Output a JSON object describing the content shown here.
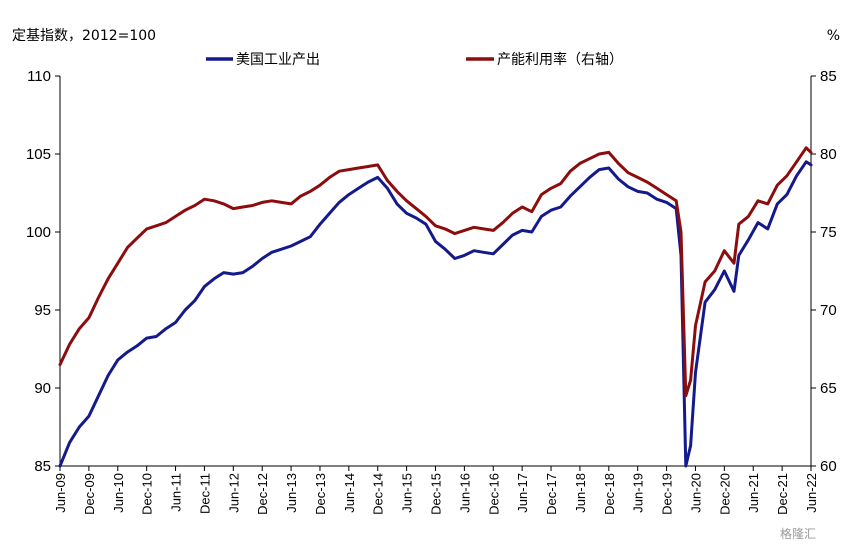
{
  "chart_data": {
    "type": "line",
    "title": "",
    "left_axis_note": "定基指数，2012=100",
    "right_axis_note": "%",
    "ylim_left": [
      85,
      110
    ],
    "ylim_right": [
      60,
      85
    ],
    "yticks_left": [
      "85",
      "90",
      "95",
      "100",
      "105",
      "110"
    ],
    "yticks_right": [
      "60",
      "65",
      "70",
      "75",
      "80",
      "85"
    ],
    "x_range": [
      "2009-06",
      "2022-06"
    ],
    "xticks": [
      "Jun-09",
      "Dec-09",
      "Jun-10",
      "Dec-10",
      "Jun-11",
      "Dec-11",
      "Jun-12",
      "Dec-12",
      "Jun-13",
      "Dec-13",
      "Jun-14",
      "Dec-14",
      "Jun-15",
      "Dec-15",
      "Jun-16",
      "Dec-16",
      "Jun-17",
      "Dec-17",
      "Jun-18",
      "Dec-18",
      "Jun-19",
      "Dec-19",
      "Jun-20",
      "Dec-20",
      "Jun-21",
      "Dec-21",
      "Jun-22"
    ],
    "grid": false,
    "legend_position": "top",
    "series": [
      {
        "name": "美国工业产出",
        "axis": "left",
        "color": "#141a8c",
        "points": [
          [
            "2009-06",
            85.0
          ],
          [
            "2009-08",
            86.5
          ],
          [
            "2009-10",
            87.5
          ],
          [
            "2009-12",
            88.2
          ],
          [
            "2010-02",
            89.5
          ],
          [
            "2010-04",
            90.8
          ],
          [
            "2010-06",
            91.8
          ],
          [
            "2010-08",
            92.3
          ],
          [
            "2010-10",
            92.7
          ],
          [
            "2010-12",
            93.2
          ],
          [
            "2011-02",
            93.3
          ],
          [
            "2011-04",
            93.8
          ],
          [
            "2011-06",
            94.2
          ],
          [
            "2011-08",
            95.0
          ],
          [
            "2011-10",
            95.6
          ],
          [
            "2011-12",
            96.5
          ],
          [
            "2012-02",
            97.0
          ],
          [
            "2012-04",
            97.4
          ],
          [
            "2012-06",
            97.3
          ],
          [
            "2012-08",
            97.4
          ],
          [
            "2012-10",
            97.8
          ],
          [
            "2012-12",
            98.3
          ],
          [
            "2013-02",
            98.7
          ],
          [
            "2013-04",
            98.9
          ],
          [
            "2013-06",
            99.1
          ],
          [
            "2013-08",
            99.4
          ],
          [
            "2013-10",
            99.7
          ],
          [
            "2013-12",
            100.5
          ],
          [
            "2014-02",
            101.2
          ],
          [
            "2014-04",
            101.9
          ],
          [
            "2014-06",
            102.4
          ],
          [
            "2014-08",
            102.8
          ],
          [
            "2014-10",
            103.2
          ],
          [
            "2014-12",
            103.5
          ],
          [
            "2015-02",
            102.8
          ],
          [
            "2015-04",
            101.8
          ],
          [
            "2015-06",
            101.2
          ],
          [
            "2015-08",
            100.9
          ],
          [
            "2015-10",
            100.5
          ],
          [
            "2015-12",
            99.4
          ],
          [
            "2016-02",
            98.9
          ],
          [
            "2016-04",
            98.3
          ],
          [
            "2016-06",
            98.5
          ],
          [
            "2016-08",
            98.8
          ],
          [
            "2016-10",
            98.7
          ],
          [
            "2016-12",
            98.6
          ],
          [
            "2017-02",
            99.2
          ],
          [
            "2017-04",
            99.8
          ],
          [
            "2017-06",
            100.1
          ],
          [
            "2017-08",
            100.0
          ],
          [
            "2017-10",
            101.0
          ],
          [
            "2017-12",
            101.4
          ],
          [
            "2018-02",
            101.6
          ],
          [
            "2018-04",
            102.3
          ],
          [
            "2018-06",
            102.9
          ],
          [
            "2018-08",
            103.5
          ],
          [
            "2018-10",
            104.0
          ],
          [
            "2018-12",
            104.1
          ],
          [
            "2019-02",
            103.4
          ],
          [
            "2019-04",
            102.9
          ],
          [
            "2019-06",
            102.6
          ],
          [
            "2019-08",
            102.5
          ],
          [
            "2019-10",
            102.1
          ],
          [
            "2019-12",
            101.9
          ],
          [
            "2020-02",
            101.5
          ],
          [
            "2020-03",
            98.5
          ],
          [
            "2020-04",
            85.0
          ],
          [
            "2020-05",
            86.3
          ],
          [
            "2020-06",
            91.0
          ],
          [
            "2020-08",
            95.5
          ],
          [
            "2020-10",
            96.3
          ],
          [
            "2020-12",
            97.5
          ],
          [
            "2021-02",
            96.2
          ],
          [
            "2021-03",
            98.5
          ],
          [
            "2021-05",
            99.5
          ],
          [
            "2021-07",
            100.6
          ],
          [
            "2021-09",
            100.2
          ],
          [
            "2021-11",
            101.8
          ],
          [
            "2022-01",
            102.4
          ],
          [
            "2022-03",
            103.6
          ],
          [
            "2022-05",
            104.5
          ],
          [
            "2022-06",
            104.3
          ]
        ]
      },
      {
        "name": "产能利用率（右轴）",
        "axis": "right",
        "color": "#8b0d0d",
        "points": [
          [
            "2009-06",
            66.5
          ],
          [
            "2009-08",
            67.8
          ],
          [
            "2009-10",
            68.8
          ],
          [
            "2009-12",
            69.5
          ],
          [
            "2010-02",
            70.8
          ],
          [
            "2010-04",
            72.0
          ],
          [
            "2010-06",
            73.0
          ],
          [
            "2010-08",
            74.0
          ],
          [
            "2010-10",
            74.6
          ],
          [
            "2010-12",
            75.2
          ],
          [
            "2011-02",
            75.4
          ],
          [
            "2011-04",
            75.6
          ],
          [
            "2011-06",
            76.0
          ],
          [
            "2011-08",
            76.4
          ],
          [
            "2011-10",
            76.7
          ],
          [
            "2011-12",
            77.1
          ],
          [
            "2012-02",
            77.0
          ],
          [
            "2012-04",
            76.8
          ],
          [
            "2012-06",
            76.5
          ],
          [
            "2012-08",
            76.6
          ],
          [
            "2012-10",
            76.7
          ],
          [
            "2012-12",
            76.9
          ],
          [
            "2013-02",
            77.0
          ],
          [
            "2013-04",
            76.9
          ],
          [
            "2013-06",
            76.8
          ],
          [
            "2013-08",
            77.3
          ],
          [
            "2013-10",
            77.6
          ],
          [
            "2013-12",
            78.0
          ],
          [
            "2014-02",
            78.5
          ],
          [
            "2014-04",
            78.9
          ],
          [
            "2014-06",
            79.0
          ],
          [
            "2014-08",
            79.1
          ],
          [
            "2014-10",
            79.2
          ],
          [
            "2014-12",
            79.3
          ],
          [
            "2015-02",
            78.3
          ],
          [
            "2015-04",
            77.6
          ],
          [
            "2015-06",
            77.0
          ],
          [
            "2015-08",
            76.5
          ],
          [
            "2015-10",
            76.0
          ],
          [
            "2015-12",
            75.4
          ],
          [
            "2016-02",
            75.2
          ],
          [
            "2016-04",
            74.9
          ],
          [
            "2016-06",
            75.1
          ],
          [
            "2016-08",
            75.3
          ],
          [
            "2016-10",
            75.2
          ],
          [
            "2016-12",
            75.1
          ],
          [
            "2017-02",
            75.6
          ],
          [
            "2017-04",
            76.2
          ],
          [
            "2017-06",
            76.6
          ],
          [
            "2017-08",
            76.3
          ],
          [
            "2017-10",
            77.4
          ],
          [
            "2017-12",
            77.8
          ],
          [
            "2018-02",
            78.1
          ],
          [
            "2018-04",
            78.9
          ],
          [
            "2018-06",
            79.4
          ],
          [
            "2018-08",
            79.7
          ],
          [
            "2018-10",
            80.0
          ],
          [
            "2018-12",
            80.1
          ],
          [
            "2019-02",
            79.4
          ],
          [
            "2019-04",
            78.8
          ],
          [
            "2019-06",
            78.5
          ],
          [
            "2019-08",
            78.2
          ],
          [
            "2019-10",
            77.8
          ],
          [
            "2019-12",
            77.4
          ],
          [
            "2020-02",
            77.0
          ],
          [
            "2020-03",
            75.0
          ],
          [
            "2020-04",
            64.5
          ],
          [
            "2020-05",
            65.5
          ],
          [
            "2020-06",
            69.0
          ],
          [
            "2020-08",
            71.8
          ],
          [
            "2020-10",
            72.5
          ],
          [
            "2020-12",
            73.8
          ],
          [
            "2021-02",
            73.0
          ],
          [
            "2021-03",
            75.5
          ],
          [
            "2021-05",
            76.0
          ],
          [
            "2021-07",
            77.0
          ],
          [
            "2021-09",
            76.8
          ],
          [
            "2021-11",
            78.0
          ],
          [
            "2022-01",
            78.6
          ],
          [
            "2022-03",
            79.5
          ],
          [
            "2022-05",
            80.4
          ],
          [
            "2022-06",
            80.1
          ]
        ]
      }
    ]
  },
  "watermark": "格隆汇"
}
